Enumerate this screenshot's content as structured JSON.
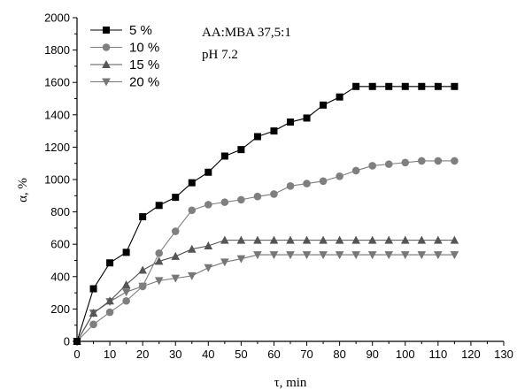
{
  "chart_data": {
    "type": "line",
    "x": [
      0,
      5,
      10,
      15,
      20,
      25,
      30,
      35,
      40,
      45,
      50,
      55,
      60,
      65,
      70,
      75,
      80,
      85,
      90,
      95,
      100,
      105,
      110,
      115
    ],
    "series": [
      {
        "name": "5 %",
        "marker": "square",
        "color": "#000000",
        "values": [
          0,
          325,
          485,
          550,
          770,
          840,
          890,
          980,
          1045,
          1145,
          1185,
          1265,
          1300,
          1355,
          1380,
          1460,
          1510,
          1575,
          1575,
          1575,
          1575,
          1575,
          1575,
          1575
        ]
      },
      {
        "name": "10 %",
        "marker": "circle",
        "color": "#7f7f7f",
        "values": [
          0,
          105,
          180,
          250,
          340,
          545,
          680,
          810,
          845,
          860,
          875,
          895,
          910,
          960,
          975,
          990,
          1020,
          1055,
          1085,
          1095,
          1105,
          1115,
          1115,
          1115
        ]
      },
      {
        "name": "15 %",
        "marker": "triangle-up",
        "color": "#555555",
        "values": [
          0,
          175,
          250,
          350,
          440,
          495,
          525,
          570,
          590,
          625,
          625,
          625,
          625,
          625,
          625,
          625,
          625,
          625,
          625,
          625,
          625,
          625,
          625,
          625
        ]
      },
      {
        "name": "20 %",
        "marker": "triangle-down",
        "color": "#777777",
        "values": [
          0,
          175,
          245,
          305,
          340,
          375,
          390,
          405,
          455,
          490,
          510,
          535,
          535,
          535,
          535,
          535,
          535,
          535,
          535,
          535,
          535,
          535,
          535,
          535
        ]
      }
    ],
    "xlabel": "τ, min",
    "ylabel": "α, %",
    "xlim": [
      0,
      130
    ],
    "ylim": [
      0,
      2000
    ],
    "xticks": [
      0,
      10,
      20,
      30,
      40,
      50,
      60,
      70,
      80,
      90,
      100,
      110,
      120,
      130
    ],
    "yticks": [
      0,
      200,
      400,
      600,
      800,
      1000,
      1200,
      1400,
      1600,
      1800,
      2000
    ],
    "annotations": [
      "AA:MBA 37,5:1",
      "pH 7.2"
    ],
    "grid": false,
    "legend": "top-left"
  }
}
